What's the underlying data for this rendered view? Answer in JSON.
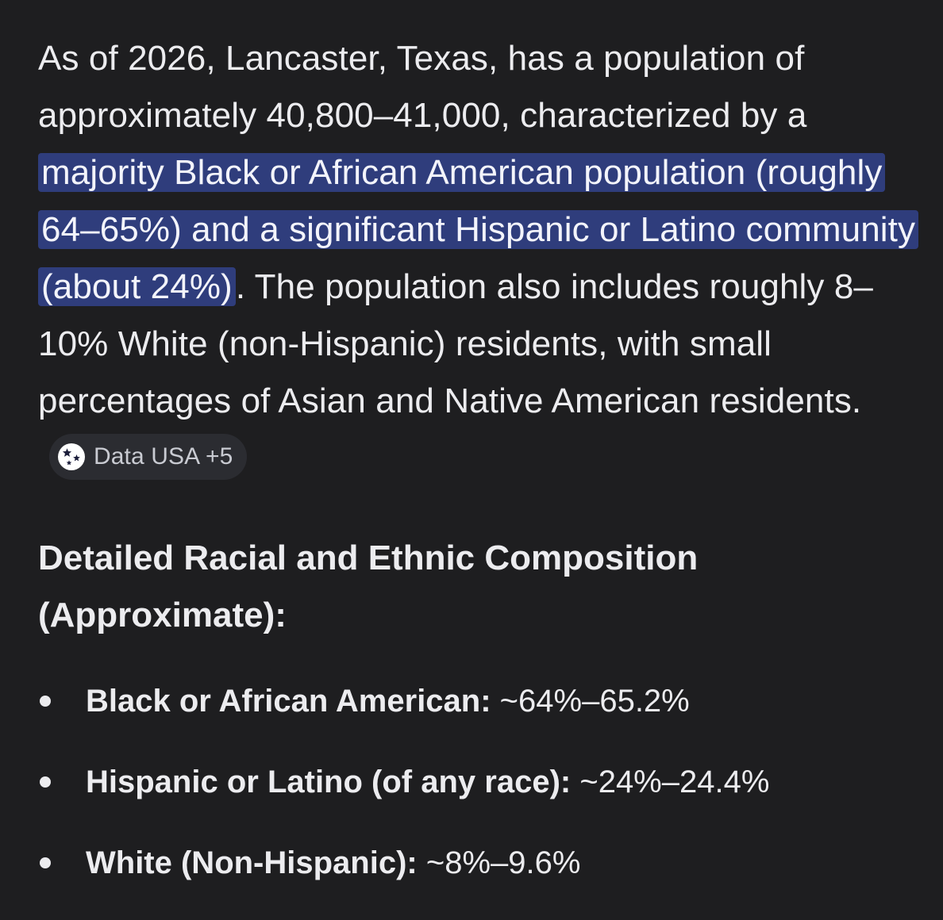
{
  "answer": {
    "intro_text": "As of 2026, Lancaster, Texas, has a population of approximately 40,800–41,000, characterized by a ",
    "highlighted_text": "majority Black or African American population (roughly 64–65%) and a significant Hispanic or Latino community (about 24%)",
    "after_highlight_text": ". The population also includes roughly 8–10% White (non-Hispanic) residents, with small percentages of Asian and Native American residents.",
    "source_chip": {
      "icon": "data-usa-star-globe-icon",
      "label": "Data USA +5"
    }
  },
  "section": {
    "heading": "Detailed Racial and Ethnic Composition (Approximate):",
    "items": [
      {
        "label": "Black or African American:",
        "value": " ~64%–65.2%"
      },
      {
        "label": "Hispanic or Latino (of any race):",
        "value": " ~24%–24.4%"
      },
      {
        "label": "White (Non-Hispanic):",
        "value": " ~8%–9.6%"
      }
    ]
  },
  "colors": {
    "background": "#1e1e20",
    "text": "#ececef",
    "highlight": "#2f3d7c",
    "chip_background": "#2b2c31"
  }
}
